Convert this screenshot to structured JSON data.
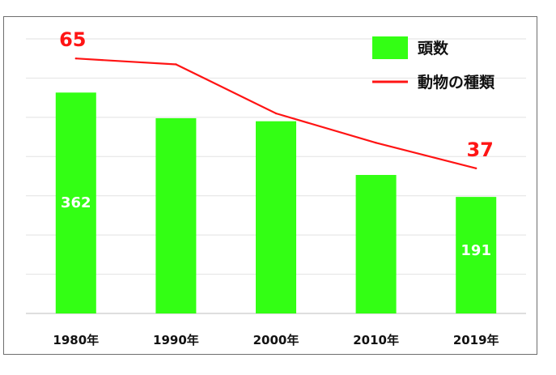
{
  "chart_data": {
    "type": "bar",
    "categories": [
      "1980年",
      "1990年",
      "2000年",
      "2010年",
      "2019年"
    ],
    "series": [
      {
        "name": "頭数",
        "kind": "bar",
        "values": [
          362,
          320,
          315,
          227,
          191
        ],
        "labels": [
          "362",
          "",
          "",
          "",
          "191"
        ],
        "color": "#33ff14"
      },
      {
        "name": "動物の種類",
        "kind": "line",
        "values": [
          65,
          63.5,
          51,
          43.5,
          37
        ],
        "labels": [
          "65",
          "",
          "",
          "",
          "37"
        ],
        "color": "#ff1414"
      }
    ],
    "ylim_bar": [
      0,
      450
    ],
    "ylim_line": [
      0,
      70
    ],
    "grid": true,
    "legend": "top-right"
  }
}
